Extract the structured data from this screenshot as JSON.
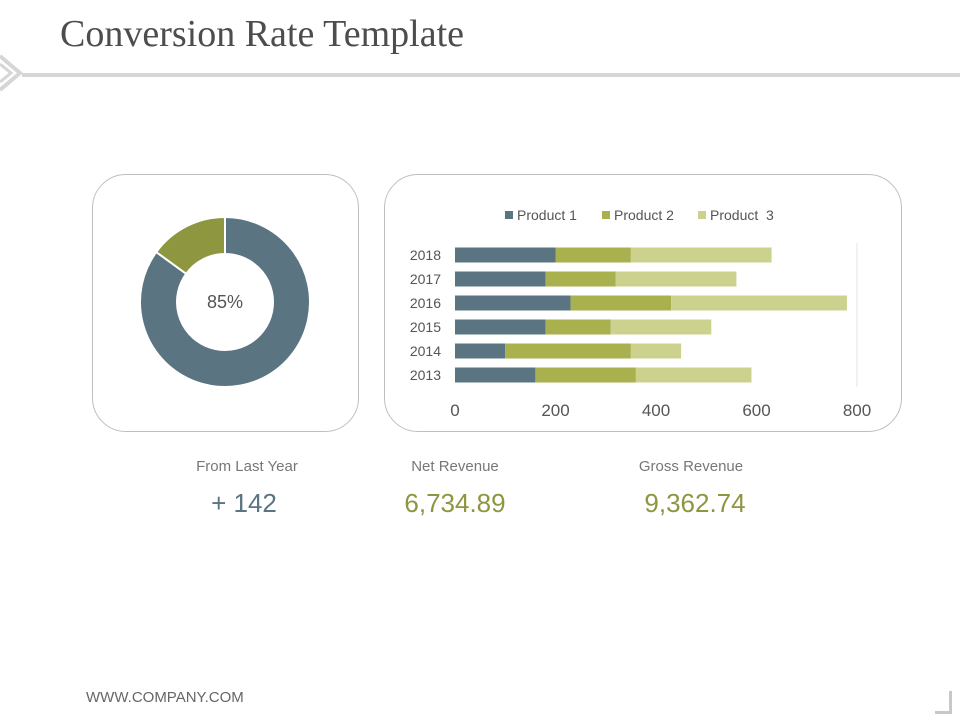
{
  "header": {
    "title": "Conversion Rate Template"
  },
  "colors": {
    "product1": "#5b7482",
    "product2": "#a8b14e",
    "product3": "#cdd18e",
    "donut_main": "#5b7482",
    "donut_accent": "#8e963f"
  },
  "chart_data": [
    {
      "type": "pie",
      "variant": "donut",
      "center_label": "85%",
      "values": [
        85,
        15
      ]
    },
    {
      "type": "bar",
      "orientation": "horizontal",
      "stacked": true,
      "categories": [
        "2013",
        "2014",
        "2015",
        "2016",
        "2017",
        "2018"
      ],
      "series": [
        {
          "name": "Product 1",
          "values": [
            160,
            100,
            180,
            230,
            180,
            200
          ]
        },
        {
          "name": "Product 2",
          "values": [
            200,
            250,
            130,
            200,
            140,
            150
          ]
        },
        {
          "name": "Product  3",
          "values": [
            230,
            100,
            200,
            350,
            240,
            280
          ]
        }
      ],
      "xlim": [
        0,
        800
      ],
      "xticks": [
        "0",
        "200",
        "400",
        "600",
        "800"
      ],
      "legend": "top"
    }
  ],
  "stats": [
    {
      "label": "From Last Year",
      "value": "+ 142",
      "color": "#5b7482"
    },
    {
      "label": "Net Revenue",
      "value": "6,734.89",
      "color": "#8e963f"
    },
    {
      "label": "Gross Revenue",
      "value": "9,362.74",
      "color": "#8e963f"
    }
  ],
  "footer": {
    "text": "WWW.COMPANY.COM"
  }
}
